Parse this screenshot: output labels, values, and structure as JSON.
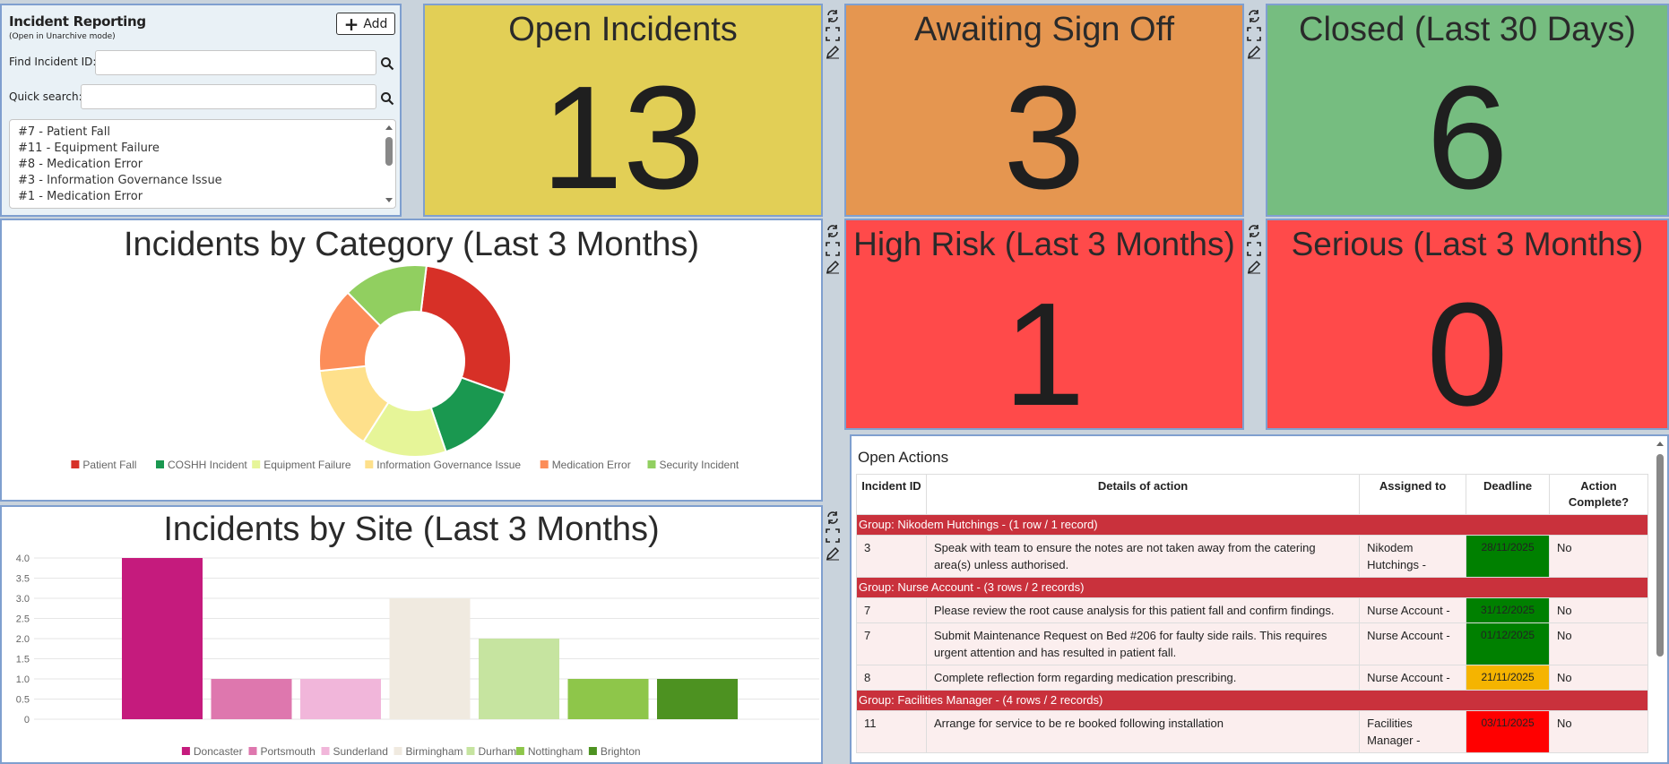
{
  "incident_panel": {
    "title": "Incident Reporting",
    "subtitle": "(Open in Unarchive mode)",
    "add_label": "Add",
    "find_label": "Find Incident ID:",
    "find_value": "",
    "quick_label": "Quick search:",
    "quick_value": "",
    "list": [
      "#7 - Patient Fall",
      "#11 - Equipment Failure",
      "#8 - Medication Error",
      "#3 - Information Governance Issue",
      "#1 - Medication Error"
    ]
  },
  "kpis": {
    "open": {
      "title": "Open Incidents",
      "value": "13",
      "color": "#e2cf56"
    },
    "awaiting": {
      "title": "Awaiting Sign Off",
      "value": "3",
      "color": "#e59650"
    },
    "closed": {
      "title": "Closed (Last 30 Days)",
      "value": "6",
      "color": "#76bd80"
    },
    "high_risk": {
      "title": "High Risk (Last 3 Months)",
      "value": "1",
      "color": "#ff4a4a"
    },
    "serious": {
      "title": "Serious (Last 3 Months)",
      "value": "0",
      "color": "#ff4a4a"
    }
  },
  "chart_data": [
    {
      "type": "pie",
      "title": "Incidents by Category (Last 3 Months)",
      "categories": [
        "Patient Fall",
        "COSHH Incident",
        "Equipment Failure",
        "Information Governance Issue",
        "Medication Error",
        "Security Incident"
      ],
      "values": [
        3,
        1.5,
        1.5,
        1.5,
        1.5,
        1.5
      ],
      "colors": [
        "#d73027",
        "#1a9850",
        "#e6f598",
        "#fee08b",
        "#fc8d59",
        "#91cf60"
      ],
      "legend": "bottom"
    },
    {
      "type": "bar",
      "title": "Incidents by Site (Last 3 Months)",
      "categories": [
        "Doncaster",
        "Portsmouth",
        "Sunderland",
        "Birmingham",
        "Durham",
        "Nottingham",
        "Brighton"
      ],
      "values": [
        4,
        1,
        1,
        3,
        2,
        1,
        1
      ],
      "colors": [
        "#c51b7d",
        "#de77ae",
        "#f1b6da",
        "#f0eae0",
        "#c6e4a0",
        "#8ec64a",
        "#4d9221"
      ],
      "yticks": [
        "0",
        "0.5",
        "1.0",
        "1.5",
        "2.0",
        "2.5",
        "3.0",
        "3.5",
        "4.0"
      ],
      "ylim": [
        0,
        4
      ],
      "grid": true,
      "legend": "bottom"
    }
  ],
  "actions": {
    "title": "Open Actions",
    "headers": [
      "Incident ID",
      "Details of action",
      "Assigned to",
      "Deadline",
      "Action Complete?"
    ],
    "groups": [
      {
        "label": "Group: Nikodem Hutchings - (1 row / 1 record)",
        "rows": [
          {
            "id": "3",
            "details": "Speak with team to ensure the notes are not taken away from the catering area(s) unless authorised.",
            "assigned": "Nikodem Hutchings -",
            "deadline": "28/11/2025",
            "color": "#008000",
            "complete": "No"
          }
        ]
      },
      {
        "label": "Group: Nurse Account - (3 rows / 2 records)",
        "rows": [
          {
            "id": "7",
            "details": "Please review the root cause analysis for this patient fall and confirm findings.",
            "assigned": "Nurse Account -",
            "deadline": "31/12/2025",
            "color": "#008000",
            "complete": "No"
          },
          {
            "id": "7",
            "details": "Submit Maintenance Request on Bed #206 for faulty side rails. This requires urgent attention and has resulted in patient fall.",
            "assigned": "Nurse Account -",
            "deadline": "01/12/2025",
            "color": "#008000",
            "complete": "No"
          },
          {
            "id": "8",
            "details": "Complete reflection form regarding medication prescribing.",
            "assigned": "Nurse Account -",
            "deadline": "21/11/2025",
            "color": "#f5b400",
            "complete": "No"
          }
        ]
      },
      {
        "label": "Group: Facilities Manager - (4 rows / 2 records)",
        "rows": [
          {
            "id": "11",
            "details": "Arrange for service to be re booked following installation",
            "assigned": "Facilities Manager -",
            "deadline": "03/11/2025",
            "color": "#ff0000",
            "complete": "No"
          }
        ]
      }
    ]
  }
}
